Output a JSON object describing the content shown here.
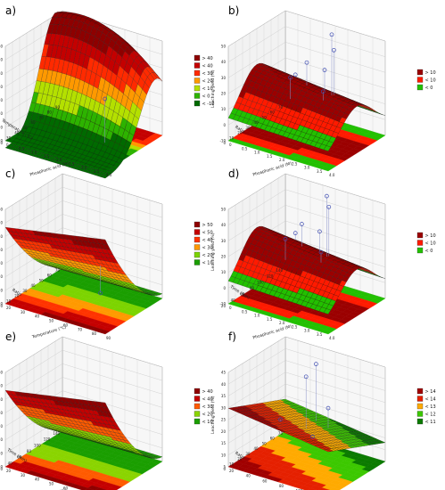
{
  "chart_data": [
    {
      "panel": "a)",
      "type": "surface3d",
      "xlabel": "Temperature (°C)",
      "ylabel": "Phosphoric acid (M)",
      "zlabel": "Leaching yield (%)",
      "x_ticks": [
        "90",
        "80",
        "70",
        "60",
        "50",
        "40",
        "30",
        "20"
      ],
      "y_ticks": [
        "0",
        "0.5",
        "1.0",
        "1.5",
        "2.0",
        "2.5",
        "3.0",
        "3.5",
        "4.0"
      ],
      "z_ticks": [
        "-10",
        "0",
        "10",
        "20",
        "30",
        "40",
        "50",
        "60"
      ],
      "zlim": [
        -10,
        60
      ],
      "surface": "dome",
      "points": [
        [
          0.78,
          0.62,
          0.55
        ]
      ],
      "legend": [
        "> 40",
        "< 40",
        "< 30",
        "< 20",
        "< 10",
        "< 0",
        "< -10"
      ],
      "colors": [
        "#8e0000",
        "#c40000",
        "#ff2a00",
        "#ff9900",
        "#b4e000",
        "#2db300",
        "#006a00"
      ]
    },
    {
      "panel": "b)",
      "type": "surface3d",
      "xlabel": "Ratio",
      "ylabel": "Phosphoric acid (M)",
      "zlabel": "Leaching yield (%)",
      "x_ticks": [
        "70",
        "60",
        "50",
        "40",
        "30",
        "20",
        "10",
        "0"
      ],
      "y_ticks": [
        "0",
        "0.5",
        "1.0",
        "1.5",
        "2.0",
        "2.5",
        "3.0",
        "3.5",
        "4.0"
      ],
      "z_ticks": [
        "-10",
        "0",
        "10",
        "20",
        "30",
        "40",
        "50"
      ],
      "zlim": [
        -10,
        50
      ],
      "surface": "ridge",
      "points": [
        [
          0.55,
          0.15,
          0.98
        ],
        [
          0.6,
          0.2,
          0.85
        ],
        [
          0.65,
          0.45,
          0.75
        ],
        [
          0.5,
          0.5,
          0.8
        ],
        [
          0.45,
          0.7,
          0.7
        ],
        [
          0.72,
          0.6,
          0.6
        ],
        [
          0.3,
          0.35,
          0.55
        ]
      ],
      "legend": [
        "> 10",
        "< 10",
        "< 0"
      ],
      "colors": [
        "#9b0000",
        "#ff1a00",
        "#22c000"
      ]
    },
    {
      "panel": "c)",
      "type": "surface3d",
      "xlabel": "Ratio",
      "ylabel": "Temperature (°C)",
      "zlabel": "Leaching yield (%)",
      "x_ticks": [
        "70",
        "60",
        "50",
        "40",
        "30",
        "20",
        "10",
        "0"
      ],
      "y_ticks": [
        "20",
        "30",
        "40",
        "50",
        "60",
        "70",
        "80",
        "90"
      ],
      "z_ticks": [
        "-10",
        "0",
        "10",
        "20",
        "30",
        "40",
        "50",
        "60"
      ],
      "zlim": [
        -10,
        60
      ],
      "surface": "rise",
      "points": [
        [
          0.78,
          0.7,
          0.25
        ]
      ],
      "legend": [
        "> 50",
        "< 50",
        "< 40",
        "< 30",
        "< 20",
        "< 10"
      ],
      "colors": [
        "#8e0000",
        "#c40000",
        "#ff3300",
        "#ff9900",
        "#7cd400",
        "#1a9e00"
      ]
    },
    {
      "panel": "d)",
      "type": "surface3d",
      "xlabel": "Time (min)",
      "ylabel": "Phosphoric acid (M)",
      "zlabel": "Leaching yield (%)",
      "x_ticks": [
        "140",
        "120",
        "100",
        "80",
        "60",
        "40",
        "20"
      ],
      "y_ticks": [
        "0",
        "0.5",
        "1.0",
        "1.5",
        "2.0",
        "2.5",
        "3.0",
        "3.5",
        "4.0"
      ],
      "z_ticks": [
        "-10",
        "0",
        "10",
        "20",
        "30",
        "40",
        "50"
      ],
      "zlim": [
        -10,
        50
      ],
      "surface": "ridge",
      "points": [
        [
          0.5,
          0.15,
          0.98
        ],
        [
          0.55,
          0.2,
          0.9
        ],
        [
          0.6,
          0.45,
          0.75
        ],
        [
          0.45,
          0.5,
          0.8
        ],
        [
          0.4,
          0.7,
          0.7
        ],
        [
          0.7,
          0.6,
          0.62
        ],
        [
          0.3,
          0.35,
          0.6
        ]
      ],
      "legend": [
        "> 10",
        "< 10",
        "< 0"
      ],
      "colors": [
        "#9b0000",
        "#ff1a00",
        "#22c000"
      ]
    },
    {
      "panel": "e)",
      "type": "surface3d",
      "xlabel": "Time (min)",
      "ylabel": "Temperature (°C)",
      "zlabel": "Leaching yield (%)",
      "x_ticks": [
        "140",
        "120",
        "100",
        "80",
        "60",
        "40",
        "20"
      ],
      "y_ticks": [
        "20",
        "30",
        "40",
        "50",
        "60",
        "70",
        "80",
        "90"
      ],
      "z_ticks": [
        "-10",
        "0",
        "10",
        "20",
        "30",
        "40",
        "50",
        "60"
      ],
      "zlim": [
        -10,
        60
      ],
      "surface": "rise",
      "points": [],
      "legend": [
        "> 40",
        "< 40",
        "< 30",
        "< 20",
        "< 10"
      ],
      "colors": [
        "#8e0000",
        "#c40000",
        "#ff5a00",
        "#8ad400",
        "#1a9e00"
      ]
    },
    {
      "panel": "f)",
      "type": "surface3d",
      "xlabel": "Ratio",
      "ylabel": "Time (min)",
      "zlabel": "Leaching yield (%)",
      "x_ticks": [
        "70",
        "60",
        "50",
        "40",
        "30",
        "20",
        "10",
        "0"
      ],
      "y_ticks": [
        "20",
        "40",
        "60",
        "80",
        "100",
        "120",
        "140"
      ],
      "z_ticks": [
        "5",
        "10",
        "15",
        "20",
        "25",
        "30",
        "35",
        "40",
        "45"
      ],
      "zlim": [
        5,
        45
      ],
      "surface": "plane",
      "points": [
        [
          0.45,
          0.25,
          0.95
        ],
        [
          0.55,
          0.6,
          0.98
        ],
        [
          0.6,
          0.3,
          0.55
        ],
        [
          0.35,
          0.7,
          0.5
        ],
        [
          0.7,
          0.75,
          0.45
        ]
      ],
      "legend": [
        "> 14",
        "< 14",
        "< 13",
        "< 12",
        "< 11"
      ],
      "colors": [
        "#a00000",
        "#e52000",
        "#ffaa00",
        "#3cc800",
        "#0b7a00"
      ]
    }
  ]
}
